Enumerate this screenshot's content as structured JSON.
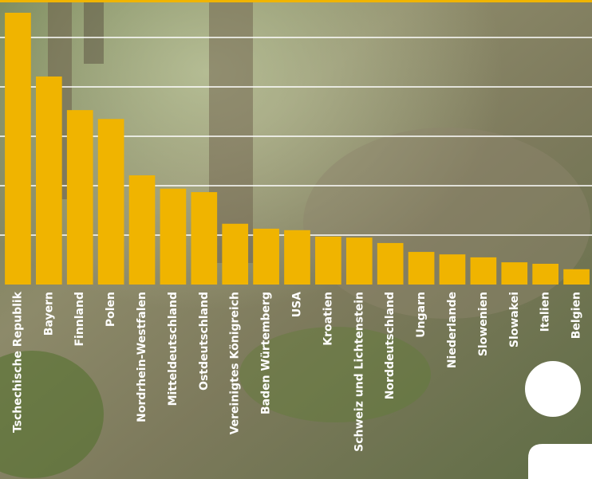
{
  "chart_data": {
    "type": "bar",
    "categories": [
      "Tschechische Republik",
      "Bayern",
      "Finnland",
      "Polen",
      "Nordrhein-Westfalen",
      "Mitteldeutschland",
      "Ostdeutschland",
      "Vereinigtes Königreich",
      "Baden Würtemberg",
      "USA",
      "Kroatien",
      "Schweiz und Lichtenstein",
      "Norddeutschland",
      "Ungarn",
      "Niederlande",
      "Slowenien",
      "Slowakei",
      "Italien",
      "Belgien"
    ],
    "values": [
      55,
      42.1,
      35.3,
      33.5,
      22.1,
      19.4,
      18.7,
      12.3,
      11.3,
      11.0,
      9.7,
      9.5,
      8.4,
      6.6,
      6.1,
      5.5,
      4.5,
      4.2,
      3.1
    ],
    "color": "#f0b400",
    "ylim": [
      0,
      55
    ],
    "yticks": [
      10,
      20,
      30,
      40,
      50
    ],
    "grid": true
  }
}
